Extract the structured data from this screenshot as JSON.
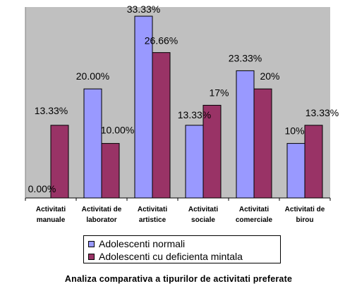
{
  "chart_data": {
    "type": "bar",
    "categories": [
      [
        "Activitati",
        "manuale"
      ],
      [
        "Activitati de",
        "laborator"
      ],
      [
        "Activitati",
        "artistice"
      ],
      [
        "Activitati",
        "sociale"
      ],
      [
        "Activitati",
        "comerciale"
      ],
      [
        "Activitati de",
        "birou"
      ]
    ],
    "series": [
      {
        "name": "Adolescenti normali",
        "color": "#9999ff",
        "values": [
          0,
          20,
          33.33,
          13.33,
          23.33,
          10
        ],
        "labels": [
          "0.00%",
          "20.00%",
          "33.33%",
          "13.33%",
          "23.33%",
          "10%"
        ]
      },
      {
        "name": "Adolescenti cu deficienta mintala",
        "color": "#993366",
        "values": [
          13.33,
          10,
          26.66,
          17,
          20,
          13.33
        ],
        "labels": [
          "13.33%",
          "10.00%",
          "26.66%",
          "17%",
          "20%",
          "13.33%"
        ]
      }
    ],
    "ylim": [
      0,
      33.33
    ],
    "plot_background": "#c0c0c0",
    "grid": false,
    "legend_position": "bottom",
    "caption": "Analiza comparativa a tipurilor de activitati preferate"
  }
}
